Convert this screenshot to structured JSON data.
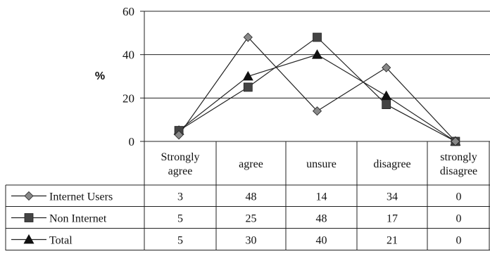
{
  "chart_data": {
    "type": "line",
    "title": "",
    "xlabel": "",
    "ylabel": "%",
    "ylim": [
      0,
      60
    ],
    "yticks": [
      0,
      20,
      40,
      60
    ],
    "grid": true,
    "legend": "data-table-below",
    "categories": [
      [
        "Strongly",
        "agree"
      ],
      [
        "agree"
      ],
      [
        "unsure"
      ],
      [
        "disagree"
      ],
      [
        "strongly",
        "disagree"
      ]
    ],
    "series": [
      {
        "name": "Internet Users",
        "marker": "diamond-icon",
        "color": "#888888",
        "values": [
          3,
          48,
          14,
          34,
          0
        ]
      },
      {
        "name": "Non Internet",
        "marker": "square-icon",
        "color": "#444444",
        "values": [
          5,
          25,
          48,
          17,
          0
        ]
      },
      {
        "name": "Total",
        "marker": "triangle-icon",
        "color": "#111111",
        "values": [
          5,
          30,
          40,
          21,
          0
        ]
      }
    ]
  }
}
